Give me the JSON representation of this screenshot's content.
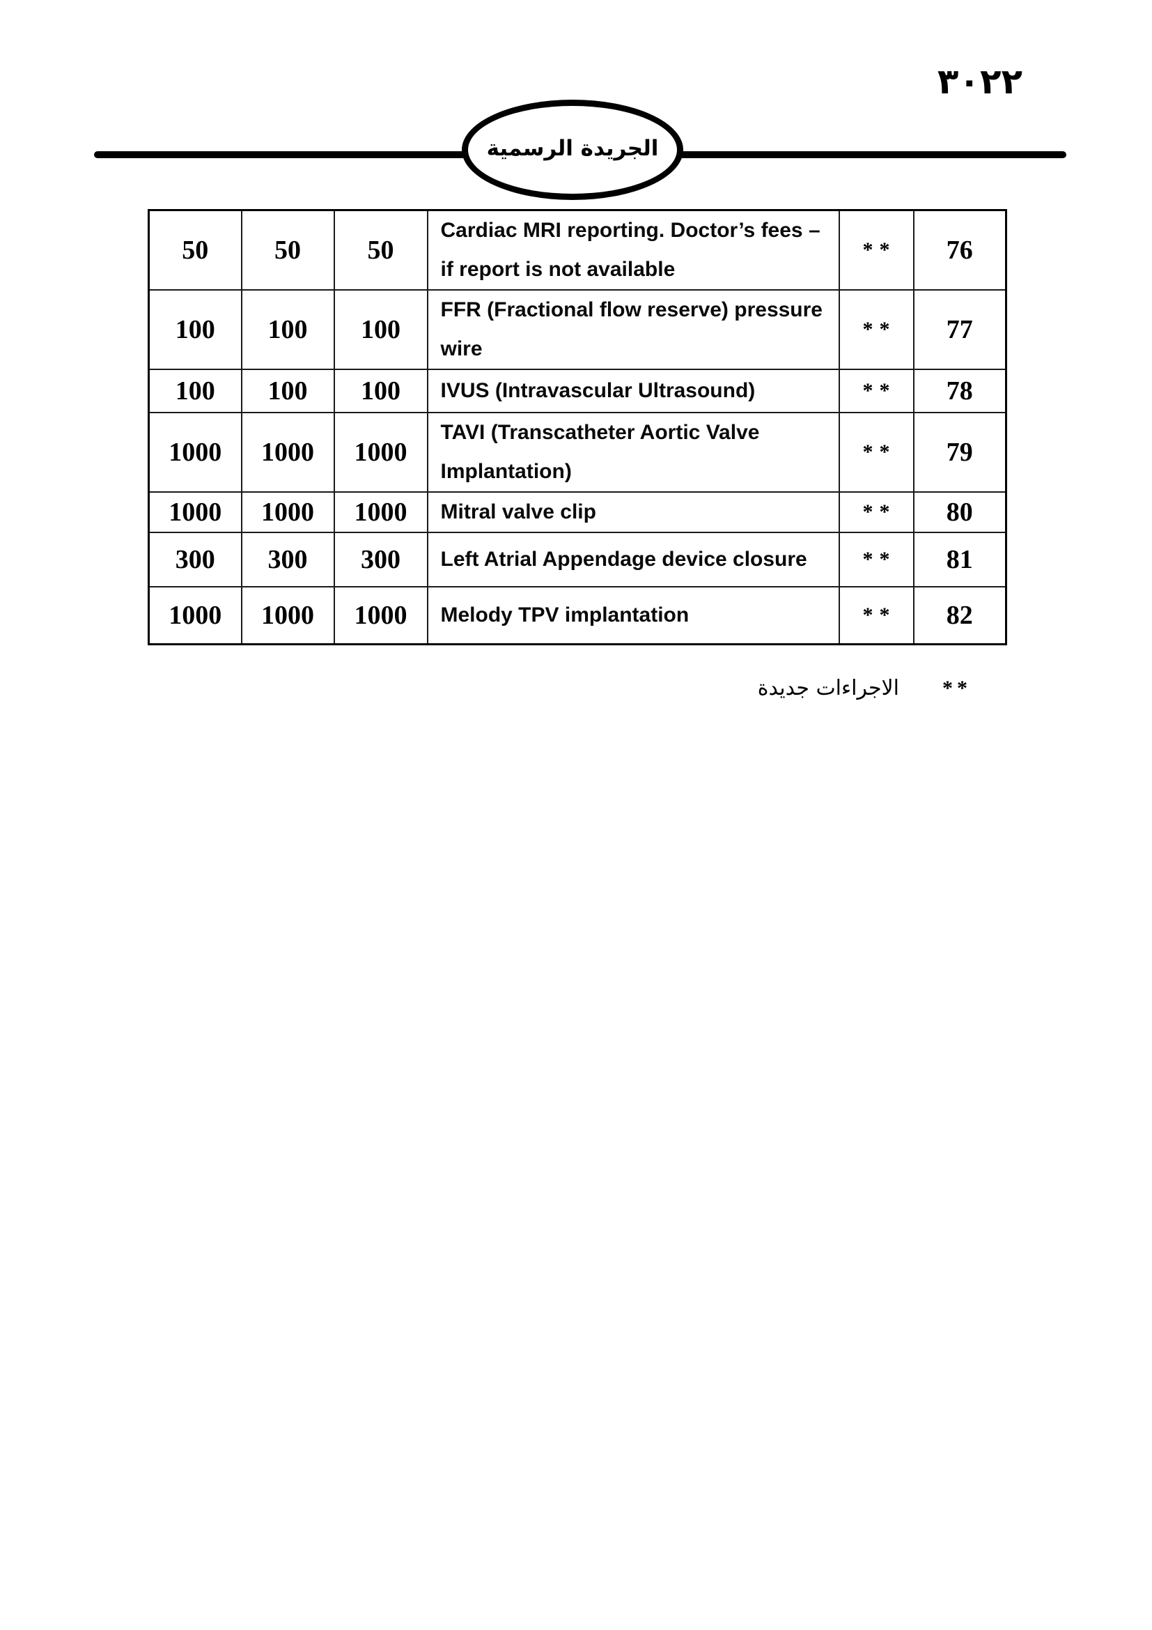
{
  "page": {
    "number": "٣٠٢٢",
    "masthead_title": "الجريدة الرسمية"
  },
  "table": {
    "rows": [
      {
        "fee_a": "50",
        "fee_b": "50",
        "fee_c": "50",
        "description": "Cardiac MRI reporting. Doctor’s fees – if report is not available",
        "marker": "**",
        "no": "76"
      },
      {
        "fee_a": "100",
        "fee_b": "100",
        "fee_c": "100",
        "description": "FFR (Fractional flow reserve) pressure wire",
        "marker": "**",
        "no": "77"
      },
      {
        "fee_a": "100",
        "fee_b": "100",
        "fee_c": "100",
        "description": "IVUS (Intravascular Ultrasound)",
        "marker": "**",
        "no": "78"
      },
      {
        "fee_a": "1000",
        "fee_b": "1000",
        "fee_c": "1000",
        "description": "TAVI (Transcatheter Aortic Valve Implantation)",
        "marker": "**",
        "no": "79"
      },
      {
        "fee_a": "1000",
        "fee_b": "1000",
        "fee_c": "1000",
        "description": "Mitral valve clip",
        "marker": "**",
        "no": "80"
      },
      {
        "fee_a": "300",
        "fee_b": "300",
        "fee_c": "300",
        "description": "Left Atrial Appendage device closure",
        "marker": "**",
        "no": "81"
      },
      {
        "fee_a": "1000",
        "fee_b": "1000",
        "fee_c": "1000",
        "description": "Melody TPV implantation",
        "marker": "**",
        "no": "82"
      }
    ]
  },
  "footnote": {
    "marker": "**",
    "text": "الاجراءات جديدة"
  }
}
